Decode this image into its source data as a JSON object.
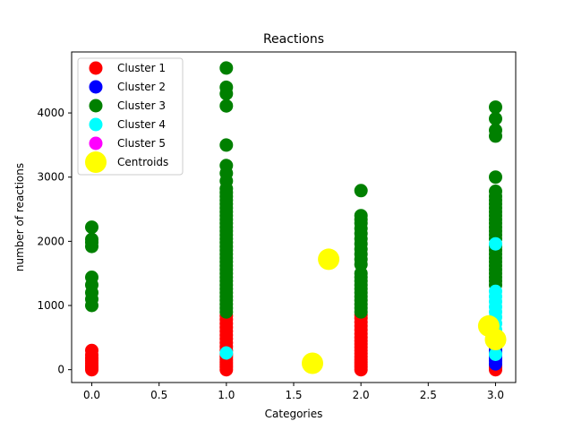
{
  "chart_data": {
    "type": "scatter",
    "title": "Reactions",
    "xlabel": "Categories",
    "ylabel": "number of reactions",
    "xlim": [
      -0.15,
      3.15
    ],
    "ylim": [
      -200,
      4950
    ],
    "xticks": [
      0.0,
      0.5,
      1.0,
      1.5,
      2.0,
      2.5,
      3.0
    ],
    "xtick_labels": [
      "0.0",
      "0.5",
      "1.0",
      "1.5",
      "2.0",
      "2.5",
      "3.0"
    ],
    "yticks": [
      0,
      1000,
      2000,
      3000,
      4000
    ],
    "ytick_labels": [
      "0",
      "1000",
      "2000",
      "3000",
      "4000"
    ],
    "grid": false,
    "legend_placement": "top-left",
    "series": [
      {
        "name": "Cluster 1",
        "color": "#ff0000",
        "points": [
          [
            0,
            0
          ],
          [
            0,
            30
          ],
          [
            0,
            60
          ],
          [
            0,
            100
          ],
          [
            0,
            140
          ],
          [
            0,
            180
          ],
          [
            0,
            230
          ],
          [
            0,
            300
          ],
          [
            1,
            0
          ],
          [
            1,
            40
          ],
          [
            1,
            80
          ],
          [
            1,
            120
          ],
          [
            1,
            160
          ],
          [
            1,
            200
          ],
          [
            1,
            240
          ],
          [
            1,
            300
          ],
          [
            1,
            360
          ],
          [
            1,
            420
          ],
          [
            1,
            480
          ],
          [
            1,
            540
          ],
          [
            1,
            600
          ],
          [
            1,
            660
          ],
          [
            1,
            720
          ],
          [
            1,
            780
          ],
          [
            1,
            840
          ],
          [
            2,
            0
          ],
          [
            2,
            40
          ],
          [
            2,
            80
          ],
          [
            2,
            120
          ],
          [
            2,
            160
          ],
          [
            2,
            200
          ],
          [
            2,
            250
          ],
          [
            2,
            300
          ],
          [
            2,
            350
          ],
          [
            2,
            400
          ],
          [
            2,
            450
          ],
          [
            2,
            500
          ],
          [
            2,
            560
          ],
          [
            2,
            620
          ],
          [
            2,
            680
          ],
          [
            2,
            740
          ],
          [
            2,
            800
          ],
          [
            2,
            850
          ],
          [
            3,
            0
          ],
          [
            3,
            30
          ],
          [
            3,
            60
          ]
        ]
      },
      {
        "name": "Cluster 2",
        "color": "#0000ff",
        "points": [
          [
            3,
            90
          ],
          [
            3,
            140
          ],
          [
            3,
            190
          ],
          [
            3,
            240
          ],
          [
            3,
            290
          ],
          [
            3,
            340
          ]
        ]
      },
      {
        "name": "Cluster 3",
        "color": "#008000",
        "points": [
          [
            0,
            1000
          ],
          [
            0,
            1100
          ],
          [
            0,
            1200
          ],
          [
            0,
            1320
          ],
          [
            0,
            1440
          ],
          [
            0,
            1920
          ],
          [
            0,
            1980
          ],
          [
            0,
            2030
          ],
          [
            0,
            2220
          ],
          [
            1,
            900
          ],
          [
            1,
            960
          ],
          [
            1,
            1020
          ],
          [
            1,
            1080
          ],
          [
            1,
            1140
          ],
          [
            1,
            1200
          ],
          [
            1,
            1260
          ],
          [
            1,
            1320
          ],
          [
            1,
            1380
          ],
          [
            1,
            1440
          ],
          [
            1,
            1500
          ],
          [
            1,
            1560
          ],
          [
            1,
            1620
          ],
          [
            1,
            1680
          ],
          [
            1,
            1740
          ],
          [
            1,
            1800
          ],
          [
            1,
            1860
          ],
          [
            1,
            1920
          ],
          [
            1,
            1980
          ],
          [
            1,
            2040
          ],
          [
            1,
            2100
          ],
          [
            1,
            2160
          ],
          [
            1,
            2220
          ],
          [
            1,
            2280
          ],
          [
            1,
            2340
          ],
          [
            1,
            2400
          ],
          [
            1,
            2460
          ],
          [
            1,
            2520
          ],
          [
            1,
            2580
          ],
          [
            1,
            2640
          ],
          [
            1,
            2700
          ],
          [
            1,
            2760
          ],
          [
            1,
            2820
          ],
          [
            1,
            2940
          ],
          [
            1,
            3060
          ],
          [
            1,
            3180
          ],
          [
            1,
            3500
          ],
          [
            1,
            4110
          ],
          [
            1,
            4300
          ],
          [
            1,
            4400
          ],
          [
            1,
            4700
          ],
          [
            2,
            900
          ],
          [
            2,
            960
          ],
          [
            2,
            1020
          ],
          [
            2,
            1080
          ],
          [
            2,
            1140
          ],
          [
            2,
            1200
          ],
          [
            2,
            1260
          ],
          [
            2,
            1320
          ],
          [
            2,
            1380
          ],
          [
            2,
            1440
          ],
          [
            2,
            1500
          ],
          [
            2,
            1640
          ],
          [
            2,
            1720
          ],
          [
            2,
            1800
          ],
          [
            2,
            1880
          ],
          [
            2,
            1960
          ],
          [
            2,
            2040
          ],
          [
            2,
            2120
          ],
          [
            2,
            2200
          ],
          [
            2,
            2280
          ],
          [
            2,
            2340
          ],
          [
            2,
            2400
          ],
          [
            2,
            2790
          ],
          [
            3,
            1320
          ],
          [
            3,
            1380
          ],
          [
            3,
            1440
          ],
          [
            3,
            1500
          ],
          [
            3,
            1560
          ],
          [
            3,
            1620
          ],
          [
            3,
            1680
          ],
          [
            3,
            1740
          ],
          [
            3,
            1800
          ],
          [
            3,
            1860
          ],
          [
            3,
            1920
          ],
          [
            3,
            2040
          ],
          [
            3,
            2100
          ],
          [
            3,
            2160
          ],
          [
            3,
            2220
          ],
          [
            3,
            2280
          ],
          [
            3,
            2340
          ],
          [
            3,
            2400
          ],
          [
            3,
            2460
          ],
          [
            3,
            2520
          ],
          [
            3,
            2580
          ],
          [
            3,
            2640
          ],
          [
            3,
            2700
          ],
          [
            3,
            2780
          ],
          [
            3,
            3000
          ],
          [
            3,
            3640
          ],
          [
            3,
            3730
          ],
          [
            3,
            3910
          ],
          [
            3,
            4090
          ]
        ]
      },
      {
        "name": "Cluster 4",
        "color": "#00ffff",
        "points": [
          [
            1,
            260
          ],
          [
            3,
            240
          ],
          [
            3,
            420
          ],
          [
            3,
            520
          ],
          [
            3,
            620
          ],
          [
            3,
            720
          ],
          [
            3,
            820
          ],
          [
            3,
            900
          ],
          [
            3,
            980
          ],
          [
            3,
            1060
          ],
          [
            3,
            1140
          ],
          [
            3,
            1220
          ],
          [
            3,
            1960
          ]
        ]
      },
      {
        "name": "Cluster 5",
        "color": "#ff00ff",
        "points": []
      }
    ],
    "centroids": {
      "name": "Centroids",
      "color": "#ffff00",
      "points": [
        [
          1.64,
          100
        ],
        [
          1.76,
          1720
        ],
        [
          2.95,
          680
        ],
        [
          3.0,
          470
        ]
      ]
    }
  }
}
